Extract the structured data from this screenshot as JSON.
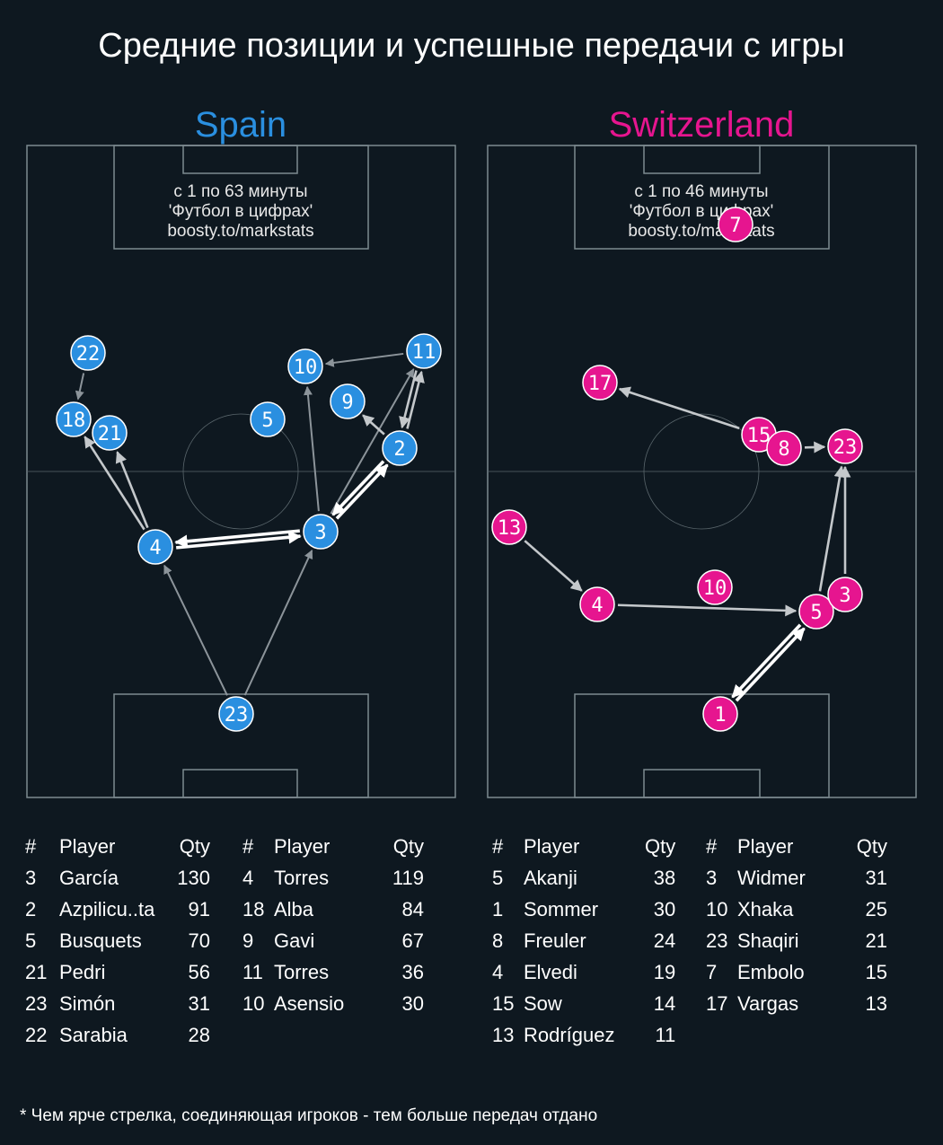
{
  "title": "Средние позиции и успешные передачи с игры",
  "footnote": "* Чем ярче стрелка, соединяющая игроков - тем больше передач отдано",
  "colors": {
    "background": "#0e1820",
    "spain": "#2a8fe0",
    "switzerland": "#e6158f",
    "pitch_lines": "#7d8a90"
  },
  "teams": [
    {
      "name": "Spain",
      "info": [
        "с 1 по 63 минуты",
        "'Футбол в цифрах'",
        "boosty.to/markstats"
      ],
      "players": [
        {
          "num": "22"
        },
        {
          "num": "18"
        },
        {
          "num": "21"
        },
        {
          "num": "4"
        },
        {
          "num": "10"
        },
        {
          "num": "11"
        },
        {
          "num": "9"
        },
        {
          "num": "5"
        },
        {
          "num": "2"
        },
        {
          "num": "3"
        },
        {
          "num": "23"
        }
      ],
      "passes": [
        {
          "from": "22",
          "to": "18",
          "weight": "low"
        },
        {
          "from": "4",
          "to": "18",
          "weight": "mid"
        },
        {
          "from": "4",
          "to": "21",
          "weight": "mid"
        },
        {
          "from": "4",
          "to": "3",
          "weight": "high"
        },
        {
          "from": "3",
          "to": "4",
          "weight": "high"
        },
        {
          "from": "11",
          "to": "10",
          "weight": "low"
        },
        {
          "from": "3",
          "to": "10",
          "weight": "low"
        },
        {
          "from": "3",
          "to": "11",
          "weight": "low"
        },
        {
          "from": "3",
          "to": "2",
          "weight": "high"
        },
        {
          "from": "2",
          "to": "3",
          "weight": "high"
        },
        {
          "from": "2",
          "to": "9",
          "weight": "mid"
        },
        {
          "from": "2",
          "to": "11",
          "weight": "mid"
        },
        {
          "from": "11",
          "to": "2",
          "weight": "mid"
        },
        {
          "from": "23",
          "to": "4",
          "weight": "low"
        },
        {
          "from": "23",
          "to": "3",
          "weight": "low"
        }
      ],
      "table_headers": {
        "num": "#",
        "player": "Player",
        "qty": "Qty"
      },
      "table_cols": [
        [
          {
            "num": "3",
            "player": "García",
            "qty": "130"
          },
          {
            "num": "2",
            "player": "Azpilicu..ta",
            "qty": "91"
          },
          {
            "num": "5",
            "player": "Busquets",
            "qty": "70"
          },
          {
            "num": "21",
            "player": "Pedri",
            "qty": "56"
          },
          {
            "num": "23",
            "player": "Simón",
            "qty": "31"
          },
          {
            "num": "22",
            "player": "Sarabia",
            "qty": "28"
          }
        ],
        [
          {
            "num": "4",
            "player": "Torres",
            "qty": "119"
          },
          {
            "num": "18",
            "player": "Alba",
            "qty": "84"
          },
          {
            "num": "9",
            "player": "Gavi",
            "qty": "67"
          },
          {
            "num": "11",
            "player": "Torres",
            "qty": "36"
          },
          {
            "num": "10",
            "player": "Asensio",
            "qty": "30"
          }
        ]
      ]
    },
    {
      "name": "Switzerland",
      "info": [
        "с 1 по 46 минуты",
        "'Футбол в цифрах'",
        "boosty.to/markstats"
      ],
      "players": [
        {
          "num": "7"
        },
        {
          "num": "17"
        },
        {
          "num": "15"
        },
        {
          "num": "8"
        },
        {
          "num": "23"
        },
        {
          "num": "13"
        },
        {
          "num": "4"
        },
        {
          "num": "10"
        },
        {
          "num": "5"
        },
        {
          "num": "3"
        },
        {
          "num": "1"
        }
      ],
      "passes": [
        {
          "from": "15",
          "to": "17",
          "weight": "mid"
        },
        {
          "from": "8",
          "to": "23",
          "weight": "mid"
        },
        {
          "from": "13",
          "to": "4",
          "weight": "mid"
        },
        {
          "from": "4",
          "to": "5",
          "weight": "mid"
        },
        {
          "from": "5",
          "to": "23",
          "weight": "mid"
        },
        {
          "from": "3",
          "to": "23",
          "weight": "mid"
        },
        {
          "from": "1",
          "to": "5",
          "weight": "high"
        },
        {
          "from": "5",
          "to": "1",
          "weight": "high"
        }
      ],
      "table_headers": {
        "num": "#",
        "player": "Player",
        "qty": "Qty"
      },
      "table_cols": [
        [
          {
            "num": "5",
            "player": "Akanji",
            "qty": "38"
          },
          {
            "num": "1",
            "player": "Sommer",
            "qty": "30"
          },
          {
            "num": "8",
            "player": "Freuler",
            "qty": "24"
          },
          {
            "num": "4",
            "player": "Elvedi",
            "qty": "19"
          },
          {
            "num": "15",
            "player": "Sow",
            "qty": "14"
          },
          {
            "num": "13",
            "player": "Rodríguez",
            "qty": "11"
          }
        ],
        [
          {
            "num": "3",
            "player": "Widmer",
            "qty": "31"
          },
          {
            "num": "10",
            "player": "Xhaka",
            "qty": "25"
          },
          {
            "num": "23",
            "player": "Shaqiri",
            "qty": "21"
          },
          {
            "num": "7",
            "player": "Embolo",
            "qty": "15"
          },
          {
            "num": "17",
            "player": "Vargas",
            "qty": "13"
          }
        ]
      ]
    }
  ]
}
